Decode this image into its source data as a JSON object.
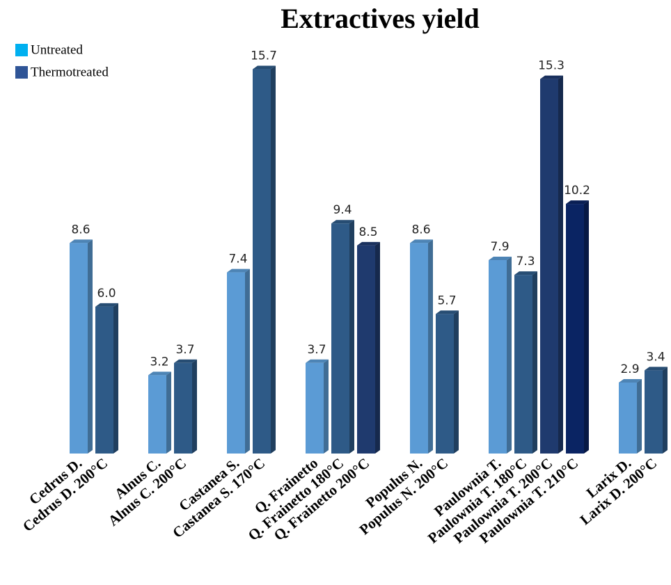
{
  "chart_data": {
    "type": "bar",
    "title": "Extractives yield",
    "legend": [
      {
        "name": "Untreated",
        "color": "#00b0f0"
      },
      {
        "name": "Thermotreated",
        "color": "#2f5597"
      }
    ],
    "ylim": [
      0,
      16
    ],
    "groups": [
      {
        "categories": [
          "Cedrus D.",
          "Cedrus D. 200°C"
        ],
        "values": [
          8.6,
          6
        ],
        "value_labels": [
          "8.6",
          "6.0"
        ],
        "colors": [
          "#5b9bd5",
          "#2e5a87"
        ]
      },
      {
        "categories": [
          "Alnus C.",
          "Alnus C. 200°C"
        ],
        "values": [
          3.2,
          3.7
        ],
        "value_labels": [
          "3.2",
          "3.7"
        ],
        "colors": [
          "#5b9bd5",
          "#2e5a87"
        ]
      },
      {
        "categories": [
          "Castanea S.",
          "Castanea S. 170°C"
        ],
        "values": [
          7.4,
          15.7
        ],
        "value_labels": [
          "7.4",
          "15.7"
        ],
        "colors": [
          "#5b9bd5",
          "#2e5a87"
        ]
      },
      {
        "categories": [
          "Q. Frainetto",
          "Q. Frainetto 180°C",
          "Q. Frainetto 200°C"
        ],
        "values": [
          3.7,
          9.4,
          8.5
        ],
        "value_labels": [
          "3.7",
          "9.4",
          "8.5"
        ],
        "colors": [
          "#5b9bd5",
          "#2e5a87",
          "#1f3a6e"
        ]
      },
      {
        "categories": [
          "Populus N.",
          "Populus N. 200°C"
        ],
        "values": [
          8.6,
          5.7
        ],
        "value_labels": [
          "8.6",
          "5.7"
        ],
        "colors": [
          "#5b9bd5",
          "#2e5a87"
        ]
      },
      {
        "categories": [
          "Paulownia T.",
          "Paulownia T. 180°C",
          "Paulownia T. 200°C",
          "Paulownia T. 210°C"
        ],
        "values": [
          7.9,
          7.3,
          15.3,
          10.2
        ],
        "value_labels": [
          "7.9",
          "7.3",
          "15.3",
          "10.2"
        ],
        "colors": [
          "#5b9bd5",
          "#2e5a87",
          "#1f3a6e",
          "#0a2463"
        ]
      },
      {
        "categories": [
          "Larix D.",
          "Larix D. 200°C"
        ],
        "values": [
          2.9,
          3.4
        ],
        "value_labels": [
          "2.9",
          "3.4"
        ],
        "colors": [
          "#5b9bd5",
          "#2e5a87"
        ]
      }
    ]
  }
}
